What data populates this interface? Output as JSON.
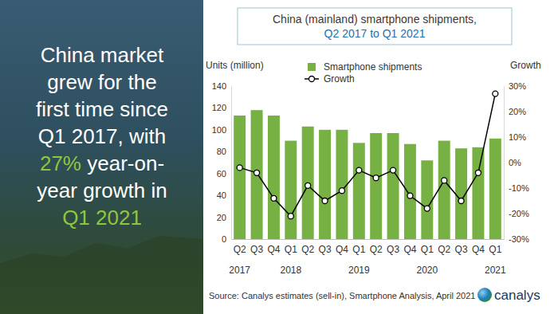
{
  "chart_data": {
    "type": "bar",
    "title": "China (mainland) smartphone shipments,",
    "subtitle": "Q2 2017 to Q1 2021",
    "y_label": "Units (million)",
    "y2_label": "Growth",
    "categories": [
      "Q2",
      "Q3",
      "Q4",
      "Q1",
      "Q2",
      "Q3",
      "Q4",
      "Q1",
      "Q2",
      "Q3",
      "Q4",
      "Q1",
      "Q2",
      "Q3",
      "Q4",
      "Q1"
    ],
    "category_groups": [
      "2017",
      null,
      null,
      "2018",
      null,
      null,
      null,
      "2019",
      null,
      null,
      null,
      "2020",
      null,
      null,
      null,
      "2021"
    ],
    "series": [
      {
        "name": "Smartphone shipments",
        "type": "bar",
        "color": "#77b043",
        "values": [
          113,
          118,
          113,
          90,
          103,
          100,
          100,
          88,
          97,
          97,
          87,
          72,
          90,
          83,
          84,
          92
        ]
      },
      {
        "name": "Growth",
        "type": "line",
        "axis": "y2",
        "color": "#000000",
        "marker": "circle",
        "values": [
          -2,
          -4,
          -14,
          -21,
          -9,
          -15,
          -11,
          -3,
          -6,
          -3,
          -13,
          -18,
          -7,
          -15,
          -4,
          27
        ]
      }
    ],
    "ylim": [
      0,
      140
    ],
    "yticks": [
      0,
      20,
      40,
      60,
      80,
      100,
      120,
      140
    ],
    "y2lim": [
      -30,
      30
    ],
    "y2ticks": [
      {
        "value": -30,
        "label": "-30%"
      },
      {
        "value": -20,
        "label": "-20%"
      },
      {
        "value": -10,
        "label": "-10%"
      },
      {
        "value": 0,
        "label": "0%"
      },
      {
        "value": 10,
        "label": "10%"
      },
      {
        "value": 20,
        "label": "20%"
      },
      {
        "value": 30,
        "label": "30%"
      }
    ],
    "grid": false,
    "legend": "top",
    "annotations": [
      [
        {
          "text": "China market",
          "color": "#ffffff"
        }
      ],
      [
        {
          "text": "grew for the",
          "color": "#ffffff"
        }
      ],
      [
        {
          "text": "first time since",
          "color": "#ffffff"
        }
      ],
      [
        {
          "text": "Q1 2017, with",
          "color": "#ffffff"
        }
      ],
      [
        {
          "text": "27%",
          "color": "#8dc63f"
        },
        {
          "text": " year-on-",
          "color": "#ffffff"
        }
      ],
      [
        {
          "text": "year growth in",
          "color": "#ffffff"
        }
      ],
      [
        {
          "text": "Q1 2021",
          "color": "#8dc63f"
        }
      ]
    ],
    "source": "Source: Canalys estimates (sell-in), Smartphone Analysis, April 2021",
    "logo": "canalys"
  }
}
